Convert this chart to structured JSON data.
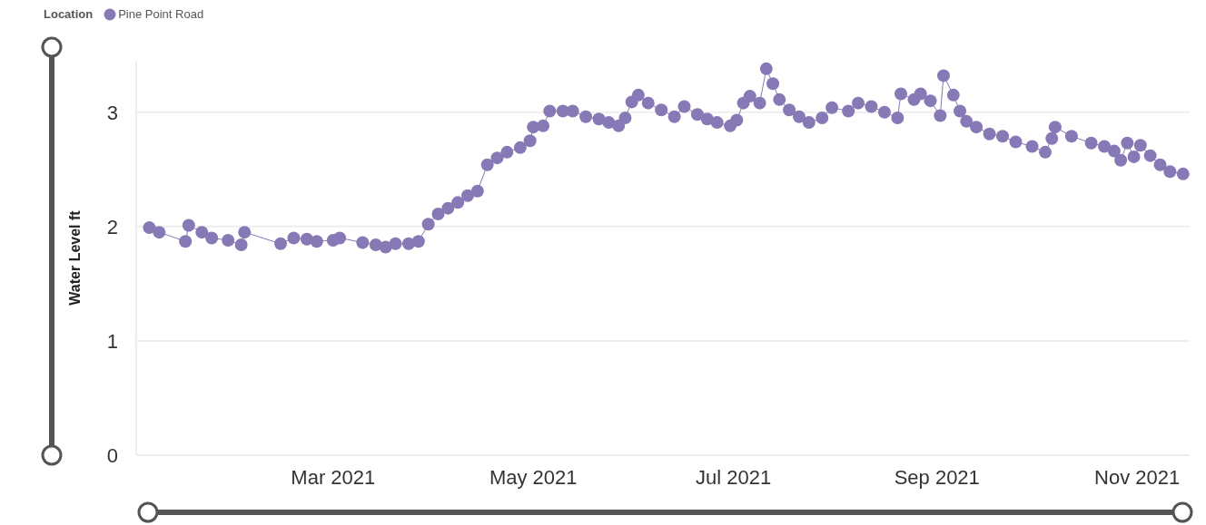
{
  "chart_data": {
    "type": "line",
    "ylabel": "Water Level ft",
    "legend_title": "Location",
    "legend": "top left",
    "grid": "y",
    "marker": "circle",
    "line_style": "solid",
    "xlim": [
      "2020-12-31",
      "2021-11-17"
    ],
    "ylim": [
      0,
      3.45
    ],
    "yticks": [
      0,
      1,
      2,
      3
    ],
    "xticks": [
      {
        "value": "2021-03-01",
        "label": "Mar 2021"
      },
      {
        "value": "2021-05-01",
        "label": "May 2021"
      },
      {
        "value": "2021-07-01",
        "label": "Jul 2021"
      },
      {
        "value": "2021-09-01",
        "label": "Sep 2021"
      },
      {
        "value": "2021-11-01",
        "label": "Nov 2021"
      }
    ],
    "x": [
      "2021-01-04",
      "2021-01-07",
      "2021-01-15",
      "2021-01-16",
      "2021-01-20",
      "2021-01-23",
      "2021-01-28",
      "2021-02-01",
      "2021-02-02",
      "2021-02-13",
      "2021-02-17",
      "2021-02-21",
      "2021-02-24",
      "2021-03-01",
      "2021-03-03",
      "2021-03-10",
      "2021-03-14",
      "2021-03-17",
      "2021-03-20",
      "2021-03-24",
      "2021-03-27",
      "2021-03-30",
      "2021-04-02",
      "2021-04-05",
      "2021-04-08",
      "2021-04-11",
      "2021-04-14",
      "2021-04-17",
      "2021-04-20",
      "2021-04-23",
      "2021-04-27",
      "2021-04-30",
      "2021-05-01",
      "2021-05-04",
      "2021-05-06",
      "2021-05-10",
      "2021-05-13",
      "2021-05-17",
      "2021-05-21",
      "2021-05-24",
      "2021-05-27",
      "2021-05-29",
      "2021-05-31",
      "2021-06-02",
      "2021-06-05",
      "2021-06-09",
      "2021-06-13",
      "2021-06-16",
      "2021-06-20",
      "2021-06-23",
      "2021-06-26",
      "2021-06-30",
      "2021-07-02",
      "2021-07-04",
      "2021-07-06",
      "2021-07-09",
      "2021-07-11",
      "2021-07-13",
      "2021-07-15",
      "2021-07-18",
      "2021-07-21",
      "2021-07-24",
      "2021-07-28",
      "2021-07-31",
      "2021-08-05",
      "2021-08-08",
      "2021-08-12",
      "2021-08-16",
      "2021-08-20",
      "2021-08-21",
      "2021-08-25",
      "2021-08-27",
      "2021-08-30",
      "2021-09-02",
      "2021-09-03",
      "2021-09-06",
      "2021-09-08",
      "2021-09-10",
      "2021-09-13",
      "2021-09-17",
      "2021-09-21",
      "2021-09-25",
      "2021-09-30",
      "2021-10-04",
      "2021-10-06",
      "2021-10-07",
      "2021-10-12",
      "2021-10-18",
      "2021-10-22",
      "2021-10-25",
      "2021-10-27",
      "2021-10-29",
      "2021-10-31",
      "2021-11-02",
      "2021-11-05",
      "2021-11-08",
      "2021-11-11",
      "2021-11-15"
    ],
    "series": [
      {
        "name": "Pine Point Road",
        "color": "#8679b5",
        "values": [
          1.99,
          1.95,
          1.87,
          2.01,
          1.95,
          1.9,
          1.88,
          1.84,
          1.95,
          1.85,
          1.9,
          1.89,
          1.87,
          1.88,
          1.9,
          1.86,
          1.84,
          1.82,
          1.85,
          1.85,
          1.87,
          2.02,
          2.11,
          2.16,
          2.21,
          2.27,
          2.31,
          2.54,
          2.6,
          2.65,
          2.69,
          2.75,
          2.87,
          2.88,
          3.01,
          3.01,
          3.01,
          2.96,
          2.94,
          2.91,
          2.88,
          2.95,
          3.09,
          3.15,
          3.08,
          3.02,
          2.96,
          3.05,
          2.98,
          2.94,
          2.91,
          2.88,
          2.93,
          3.08,
          3.14,
          3.08,
          3.38,
          3.25,
          3.11,
          3.02,
          2.96,
          2.91,
          2.95,
          3.04,
          3.01,
          3.08,
          3.05,
          3.0,
          2.95,
          3.16,
          3.11,
          3.16,
          3.1,
          2.97,
          3.32,
          3.15,
          3.01,
          2.92,
          2.87,
          2.81,
          2.79,
          2.74,
          2.7,
          2.65,
          2.77,
          2.87,
          2.79,
          2.73,
          2.7,
          2.66,
          2.58,
          2.73,
          2.61,
          2.71,
          2.62,
          2.54,
          2.48,
          2.46
        ]
      }
    ]
  }
}
